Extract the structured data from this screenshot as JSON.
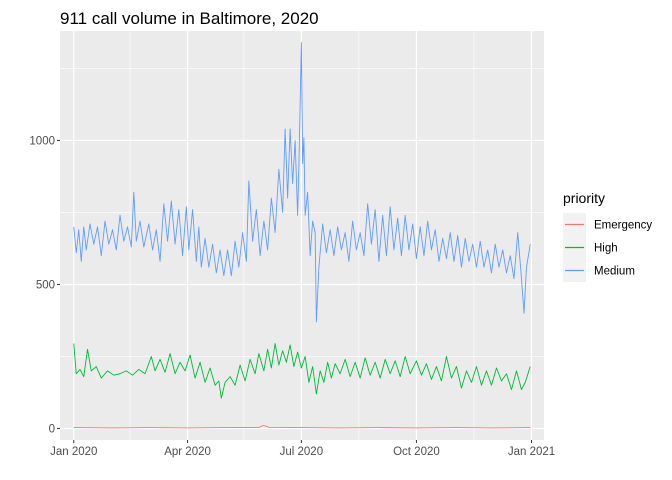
{
  "chart_data": {
    "type": "line",
    "title": "911 call volume in Baltimore, 2020",
    "xlabel": "",
    "ylabel": "",
    "x_range": [
      "2019-12-21",
      "2021-01-11"
    ],
    "ylim": [
      -40,
      1380
    ],
    "x_ticks": [
      {
        "date": "2020-01-01",
        "label": "Jan 2020"
      },
      {
        "date": "2020-04-01",
        "label": "Apr 2020"
      },
      {
        "date": "2020-07-01",
        "label": "Jul 2020"
      },
      {
        "date": "2020-10-01",
        "label": "Oct 2020"
      },
      {
        "date": "2021-01-01",
        "label": "Jan 2021"
      }
    ],
    "x_minor_ticks": [
      "2020-02-15",
      "2020-05-16",
      "2020-08-16",
      "2020-11-16"
    ],
    "y_ticks": [
      {
        "value": 0,
        "label": "0"
      },
      {
        "value": 500,
        "label": "500"
      },
      {
        "value": 1000,
        "label": "1000"
      }
    ],
    "y_minor_ticks": [
      250,
      750,
      1250
    ],
    "grid": true,
    "legend": {
      "title": "priority",
      "placement": "right"
    },
    "series": [
      {
        "name": "Emergency",
        "color": "#F8766D",
        "points": [
          [
            "2020-01-01",
            3
          ],
          [
            "2020-02-01",
            2
          ],
          [
            "2020-03-01",
            3
          ],
          [
            "2020-04-01",
            2
          ],
          [
            "2020-05-01",
            3
          ],
          [
            "2020-05-28",
            3
          ],
          [
            "2020-05-31",
            10
          ],
          [
            "2020-06-03",
            8
          ],
          [
            "2020-06-05",
            4
          ],
          [
            "2020-07-01",
            3
          ],
          [
            "2020-08-01",
            2
          ],
          [
            "2020-09-01",
            3
          ],
          [
            "2020-10-01",
            2
          ],
          [
            "2020-11-01",
            3
          ],
          [
            "2020-12-01",
            2
          ],
          [
            "2020-12-31",
            3
          ]
        ]
      },
      {
        "name": "High",
        "color": "#00BA38",
        "points": [
          [
            "2020-01-01",
            295
          ],
          [
            "2020-01-03",
            190
          ],
          [
            "2020-01-06",
            205
          ],
          [
            "2020-01-09",
            180
          ],
          [
            "2020-01-12",
            275
          ],
          [
            "2020-01-15",
            200
          ],
          [
            "2020-01-19",
            215
          ],
          [
            "2020-01-23",
            175
          ],
          [
            "2020-01-28",
            200
          ],
          [
            "2020-02-02",
            185
          ],
          [
            "2020-02-07",
            190
          ],
          [
            "2020-02-12",
            200
          ],
          [
            "2020-02-17",
            185
          ],
          [
            "2020-02-22",
            205
          ],
          [
            "2020-02-27",
            190
          ],
          [
            "2020-03-03",
            250
          ],
          [
            "2020-03-06",
            200
          ],
          [
            "2020-03-10",
            240
          ],
          [
            "2020-03-14",
            195
          ],
          [
            "2020-03-18",
            260
          ],
          [
            "2020-03-22",
            190
          ],
          [
            "2020-03-26",
            230
          ],
          [
            "2020-03-30",
            200
          ],
          [
            "2020-04-03",
            255
          ],
          [
            "2020-04-07",
            175
          ],
          [
            "2020-04-11",
            230
          ],
          [
            "2020-04-15",
            160
          ],
          [
            "2020-04-19",
            210
          ],
          [
            "2020-04-23",
            150
          ],
          [
            "2020-04-26",
            165
          ],
          [
            "2020-04-28",
            105
          ],
          [
            "2020-05-01",
            160
          ],
          [
            "2020-05-05",
            180
          ],
          [
            "2020-05-09",
            150
          ],
          [
            "2020-05-13",
            220
          ],
          [
            "2020-05-17",
            165
          ],
          [
            "2020-05-21",
            240
          ],
          [
            "2020-05-25",
            190
          ],
          [
            "2020-05-28",
            260
          ],
          [
            "2020-06-01",
            200
          ],
          [
            "2020-06-04",
            275
          ],
          [
            "2020-06-07",
            210
          ],
          [
            "2020-06-10",
            295
          ],
          [
            "2020-06-13",
            220
          ],
          [
            "2020-06-16",
            270
          ],
          [
            "2020-06-19",
            230
          ],
          [
            "2020-06-22",
            290
          ],
          [
            "2020-06-25",
            215
          ],
          [
            "2020-06-28",
            265
          ],
          [
            "2020-07-01",
            210
          ],
          [
            "2020-07-04",
            250
          ],
          [
            "2020-07-07",
            160
          ],
          [
            "2020-07-10",
            215
          ],
          [
            "2020-07-13",
            120
          ],
          [
            "2020-07-16",
            200
          ],
          [
            "2020-07-19",
            160
          ],
          [
            "2020-07-22",
            230
          ],
          [
            "2020-07-25",
            175
          ],
          [
            "2020-07-28",
            225
          ],
          [
            "2020-08-01",
            190
          ],
          [
            "2020-08-05",
            240
          ],
          [
            "2020-08-09",
            180
          ],
          [
            "2020-08-13",
            230
          ],
          [
            "2020-08-17",
            175
          ],
          [
            "2020-08-21",
            245
          ],
          [
            "2020-08-25",
            185
          ],
          [
            "2020-08-29",
            230
          ],
          [
            "2020-09-02",
            175
          ],
          [
            "2020-09-06",
            240
          ],
          [
            "2020-09-10",
            190
          ],
          [
            "2020-09-14",
            235
          ],
          [
            "2020-09-18",
            180
          ],
          [
            "2020-09-22",
            250
          ],
          [
            "2020-09-26",
            190
          ],
          [
            "2020-10-01",
            235
          ],
          [
            "2020-10-05",
            185
          ],
          [
            "2020-10-09",
            225
          ],
          [
            "2020-10-13",
            170
          ],
          [
            "2020-10-17",
            215
          ],
          [
            "2020-10-21",
            165
          ],
          [
            "2020-10-25",
            250
          ],
          [
            "2020-10-29",
            175
          ],
          [
            "2020-11-02",
            215
          ],
          [
            "2020-11-06",
            140
          ],
          [
            "2020-11-10",
            200
          ],
          [
            "2020-11-14",
            160
          ],
          [
            "2020-11-18",
            215
          ],
          [
            "2020-11-22",
            150
          ],
          [
            "2020-11-26",
            200
          ],
          [
            "2020-11-30",
            150
          ],
          [
            "2020-12-04",
            210
          ],
          [
            "2020-12-08",
            165
          ],
          [
            "2020-12-12",
            190
          ],
          [
            "2020-12-16",
            135
          ],
          [
            "2020-12-20",
            200
          ],
          [
            "2020-12-24",
            135
          ],
          [
            "2020-12-27",
            160
          ],
          [
            "2020-12-31",
            215
          ]
        ]
      },
      {
        "name": "Medium",
        "color": "#619CFF",
        "points": [
          [
            "2020-01-01",
            700
          ],
          [
            "2020-01-03",
            610
          ],
          [
            "2020-01-05",
            690
          ],
          [
            "2020-01-07",
            580
          ],
          [
            "2020-01-09",
            700
          ],
          [
            "2020-01-11",
            620
          ],
          [
            "2020-01-14",
            710
          ],
          [
            "2020-01-17",
            640
          ],
          [
            "2020-01-20",
            700
          ],
          [
            "2020-01-23",
            600
          ],
          [
            "2020-01-26",
            720
          ],
          [
            "2020-01-29",
            640
          ],
          [
            "2020-02-01",
            690
          ],
          [
            "2020-02-04",
            620
          ],
          [
            "2020-02-07",
            740
          ],
          [
            "2020-02-10",
            650
          ],
          [
            "2020-02-13",
            700
          ],
          [
            "2020-02-16",
            630
          ],
          [
            "2020-02-18",
            820
          ],
          [
            "2020-02-20",
            650
          ],
          [
            "2020-02-23",
            720
          ],
          [
            "2020-02-26",
            630
          ],
          [
            "2020-03-01",
            710
          ],
          [
            "2020-03-04",
            620
          ],
          [
            "2020-03-07",
            690
          ],
          [
            "2020-03-10",
            580
          ],
          [
            "2020-03-13",
            780
          ],
          [
            "2020-03-16",
            650
          ],
          [
            "2020-03-19",
            790
          ],
          [
            "2020-03-22",
            640
          ],
          [
            "2020-03-25",
            760
          ],
          [
            "2020-03-28",
            600
          ],
          [
            "2020-03-31",
            770
          ],
          [
            "2020-04-02",
            620
          ],
          [
            "2020-04-05",
            760
          ],
          [
            "2020-04-08",
            580
          ],
          [
            "2020-04-10",
            700
          ],
          [
            "2020-04-12",
            560
          ],
          [
            "2020-04-15",
            660
          ],
          [
            "2020-04-18",
            560
          ],
          [
            "2020-04-21",
            640
          ],
          [
            "2020-04-24",
            540
          ],
          [
            "2020-04-27",
            620
          ],
          [
            "2020-04-30",
            530
          ],
          [
            "2020-05-03",
            620
          ],
          [
            "2020-05-06",
            530
          ],
          [
            "2020-05-09",
            650
          ],
          [
            "2020-05-12",
            560
          ],
          [
            "2020-05-15",
            680
          ],
          [
            "2020-05-18",
            580
          ],
          [
            "2020-05-20",
            860
          ],
          [
            "2020-05-23",
            650
          ],
          [
            "2020-05-26",
            760
          ],
          [
            "2020-05-29",
            600
          ],
          [
            "2020-06-01",
            720
          ],
          [
            "2020-06-04",
            620
          ],
          [
            "2020-06-07",
            800
          ],
          [
            "2020-06-10",
            680
          ],
          [
            "2020-06-13",
            900
          ],
          [
            "2020-06-16",
            750
          ],
          [
            "2020-06-18",
            1040
          ],
          [
            "2020-06-20",
            800
          ],
          [
            "2020-06-22",
            1040
          ],
          [
            "2020-06-24",
            850
          ],
          [
            "2020-06-26",
            1000
          ],
          [
            "2020-06-28",
            740
          ],
          [
            "2020-06-29",
            910
          ],
          [
            "2020-06-30",
            1120
          ],
          [
            "2020-07-01",
            1340
          ],
          [
            "2020-07-02",
            920
          ],
          [
            "2020-07-03",
            1010
          ],
          [
            "2020-07-04",
            740
          ],
          [
            "2020-07-06",
            820
          ],
          [
            "2020-07-08",
            600
          ],
          [
            "2020-07-10",
            720
          ],
          [
            "2020-07-12",
            680
          ],
          [
            "2020-07-13",
            370
          ],
          [
            "2020-07-15",
            560
          ],
          [
            "2020-07-18",
            710
          ],
          [
            "2020-07-21",
            610
          ],
          [
            "2020-07-24",
            690
          ],
          [
            "2020-07-27",
            600
          ],
          [
            "2020-07-30",
            700
          ],
          [
            "2020-08-02",
            620
          ],
          [
            "2020-08-05",
            680
          ],
          [
            "2020-08-08",
            580
          ],
          [
            "2020-08-11",
            720
          ],
          [
            "2020-08-14",
            620
          ],
          [
            "2020-08-17",
            680
          ],
          [
            "2020-08-20",
            600
          ],
          [
            "2020-08-23",
            780
          ],
          [
            "2020-08-26",
            640
          ],
          [
            "2020-08-29",
            760
          ],
          [
            "2020-09-01",
            580
          ],
          [
            "2020-09-04",
            740
          ],
          [
            "2020-09-07",
            600
          ],
          [
            "2020-09-10",
            770
          ],
          [
            "2020-09-13",
            620
          ],
          [
            "2020-09-16",
            730
          ],
          [
            "2020-09-19",
            600
          ],
          [
            "2020-09-22",
            740
          ],
          [
            "2020-09-25",
            620
          ],
          [
            "2020-09-28",
            710
          ],
          [
            "2020-10-01",
            590
          ],
          [
            "2020-10-04",
            700
          ],
          [
            "2020-10-07",
            600
          ],
          [
            "2020-10-10",
            720
          ],
          [
            "2020-10-13",
            620
          ],
          [
            "2020-10-16",
            690
          ],
          [
            "2020-10-19",
            580
          ],
          [
            "2020-10-22",
            660
          ],
          [
            "2020-10-25",
            590
          ],
          [
            "2020-10-28",
            680
          ],
          [
            "2020-10-31",
            580
          ],
          [
            "2020-11-03",
            670
          ],
          [
            "2020-11-06",
            560
          ],
          [
            "2020-11-09",
            660
          ],
          [
            "2020-11-12",
            580
          ],
          [
            "2020-11-15",
            640
          ],
          [
            "2020-11-18",
            560
          ],
          [
            "2020-11-21",
            650
          ],
          [
            "2020-11-24",
            560
          ],
          [
            "2020-11-27",
            620
          ],
          [
            "2020-11-30",
            540
          ],
          [
            "2020-12-03",
            640
          ],
          [
            "2020-12-06",
            560
          ],
          [
            "2020-12-09",
            620
          ],
          [
            "2020-12-12",
            540
          ],
          [
            "2020-12-15",
            600
          ],
          [
            "2020-12-18",
            520
          ],
          [
            "2020-12-21",
            680
          ],
          [
            "2020-12-24",
            520
          ],
          [
            "2020-12-26",
            400
          ],
          [
            "2020-12-28",
            560
          ],
          [
            "2020-12-31",
            640
          ]
        ]
      }
    ]
  }
}
